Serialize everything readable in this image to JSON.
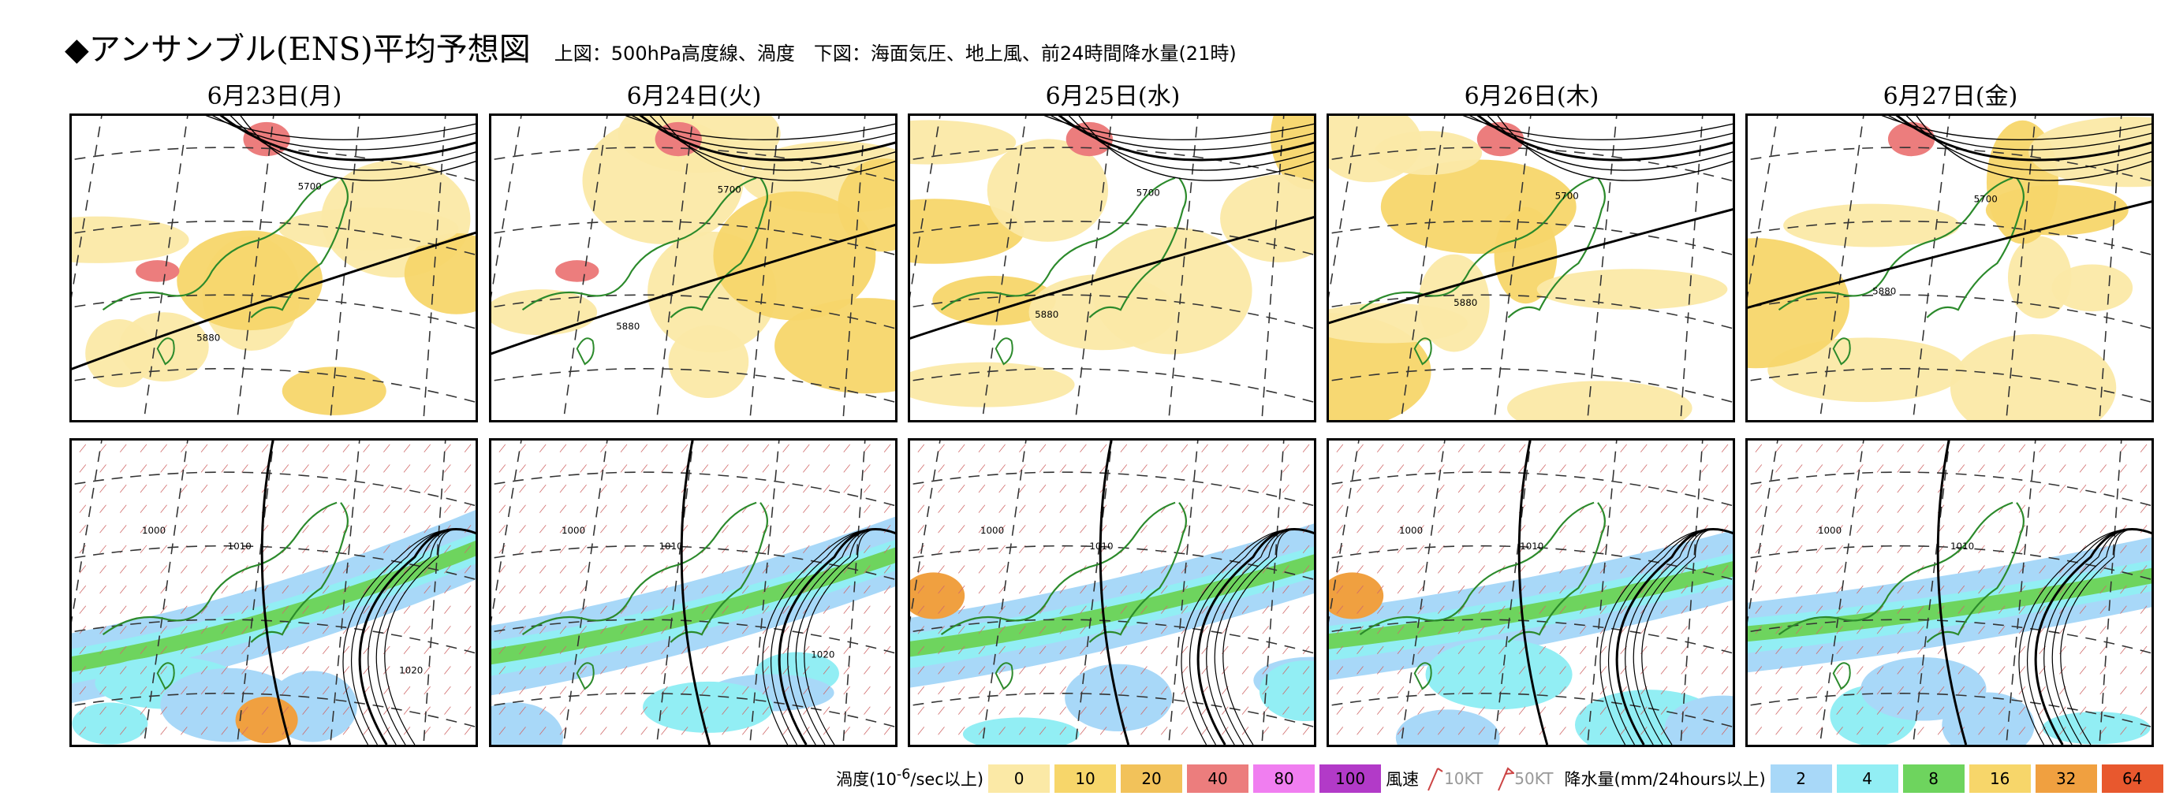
{
  "title": "◆アンサンブル(ENS)平均予想図",
  "subtitle": "上図：500hPa高度線、渦度　下図：海面気圧、地上風、前24時間降水量(21時)",
  "days": [
    {
      "label": "6月23日(月)"
    },
    {
      "label": "6月24日(火)"
    },
    {
      "label": "6月25日(水)"
    },
    {
      "label": "6月26日(木)"
    },
    {
      "label": "6月27日(金)"
    }
  ],
  "upper_contour_labels": [
    "5700",
    "5880"
  ],
  "lower_contour_labels": [
    "1000",
    "1010",
    "1020"
  ],
  "legend": {
    "vorticity_label": "渦度(10",
    "vorticity_exp": "-6",
    "vorticity_unit": "/sec以上)",
    "vorticity": [
      {
        "value": "0",
        "color": "#fbe9a6"
      },
      {
        "value": "10",
        "color": "#f7d66a"
      },
      {
        "value": "20",
        "color": "#f2c25a"
      },
      {
        "value": "40",
        "color": "#ec7d7d"
      },
      {
        "value": "80",
        "color": "#f07ef0"
      },
      {
        "value": "100",
        "color": "#b23ac8"
      }
    ],
    "wind_label": "風速",
    "wind_10": "10KT",
    "wind_50": "50KT",
    "precip_label": "降水量(mm/24hours以上)",
    "precip": [
      {
        "value": "2",
        "color": "#a8d8f8"
      },
      {
        "value": "4",
        "color": "#92eef4"
      },
      {
        "value": "8",
        "color": "#6ed45e"
      },
      {
        "value": "16",
        "color": "#f7d66a"
      },
      {
        "value": "32",
        "color": "#f0a040"
      },
      {
        "value": "64",
        "color": "#e8582e"
      }
    ]
  }
}
